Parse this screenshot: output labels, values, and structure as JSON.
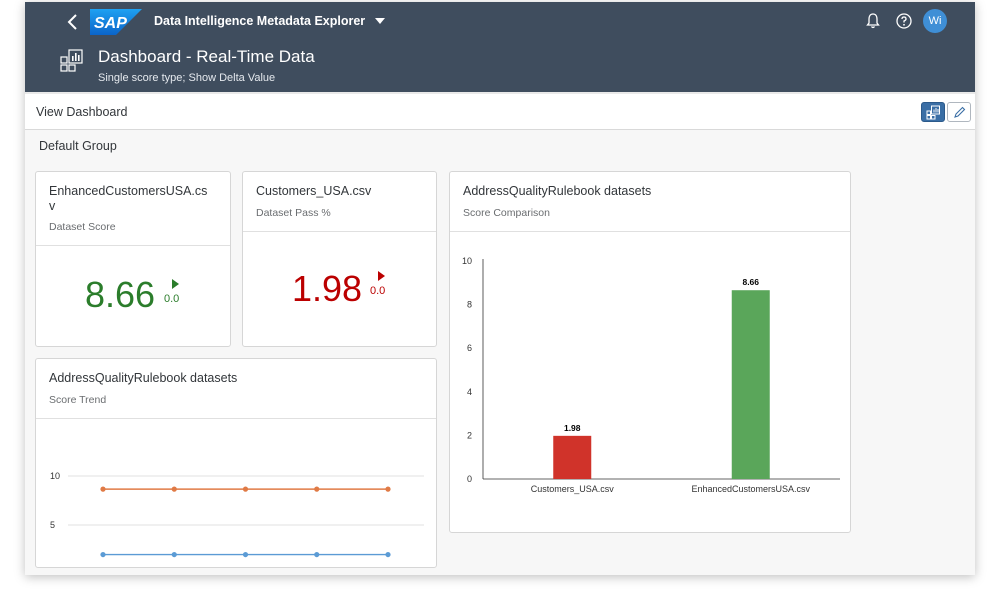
{
  "shell": {
    "app_title": "Data Intelligence Metadata Explorer",
    "logo_text": "SAP",
    "avatar_initials": "Wi",
    "page_title": "Dashboard - Real-Time Data",
    "page_subtitle": "Single score type; Show Delta Value",
    "colors": {
      "header_bg": "#3f4d5e",
      "avatar_bg": "#3f8fd6"
    }
  },
  "subbar": {
    "title": "View Dashboard"
  },
  "group": {
    "title": "Default Group"
  },
  "cards": {
    "kpi1": {
      "title_line1": "EnhancedCustomersUSA.cs",
      "title_line2": "v",
      "subtitle": "Dataset Score",
      "value": "8.66",
      "delta": "0.0",
      "color": "#2b7d2b"
    },
    "kpi2": {
      "title": "Customers_USA.csv",
      "subtitle": "Dataset Pass %",
      "value": "1.98",
      "delta": "0.0",
      "color": "#bb0000"
    },
    "bar": {
      "title": "AddressQualityRulebook datasets",
      "subtitle": "Score Comparison"
    },
    "trend": {
      "title": "AddressQualityRulebook datasets",
      "subtitle": "Score Trend"
    }
  },
  "chart_data": [
    {
      "type": "bar",
      "title": "",
      "categories": [
        "Customers_USA.csv",
        "EnhancedCustomersUSA.csv"
      ],
      "values": [
        1.98,
        8.66
      ],
      "data_labels": [
        "1.98",
        "8.66"
      ],
      "colors": [
        "#d0332a",
        "#5aa65a"
      ],
      "ylim": [
        0,
        10
      ],
      "yticks": [
        "0",
        "2",
        "4",
        "6",
        "8",
        "10"
      ],
      "grid": false
    },
    {
      "type": "line",
      "title": "",
      "series": [
        {
          "values": [
            8.66,
            8.66,
            8.66,
            8.66,
            8.66
          ],
          "color": "#e07a45"
        },
        {
          "values": [
            1.98,
            1.98,
            1.98,
            1.98,
            1.98
          ],
          "color": "#5b9bd5"
        }
      ],
      "visible_yticks": [
        "10",
        "5"
      ],
      "ylim": [
        0,
        11
      ]
    }
  ]
}
